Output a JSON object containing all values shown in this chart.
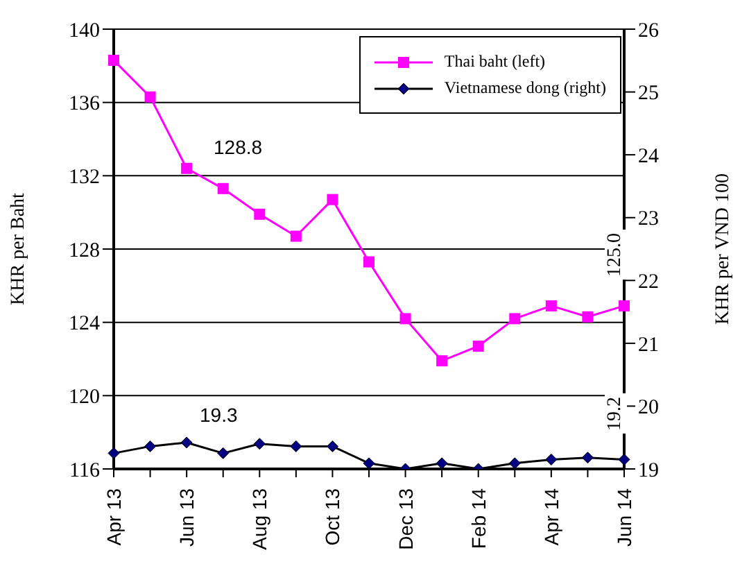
{
  "chart_data": {
    "type": "line",
    "categories": [
      "Apr 13",
      null,
      "Jun 13",
      null,
      "Aug 13",
      null,
      "Oct 13",
      null,
      "Dec 13",
      null,
      "Feb 14",
      null,
      "Apr 14",
      null,
      "Jun 14"
    ],
    "series": [
      {
        "name": "Thai baht (left)",
        "color": "#ff00ff",
        "marker": "square",
        "values": [
          138.3,
          136.3,
          132.4,
          131.3,
          129.9,
          128.7,
          130.7,
          127.3,
          124.2,
          121.9,
          122.7,
          124.2,
          124.9,
          124.3,
          124.9
        ]
      },
      {
        "name": "Vietnamese dong (right)",
        "color": "#000000",
        "marker": "diamond",
        "axis": "y2",
        "values": [
          19.25,
          19.36,
          19.42,
          19.25,
          19.4,
          19.36,
          19.36,
          19.09,
          19.0,
          19.09,
          19.0,
          19.09,
          19.15,
          19.18,
          19.15
        ]
      }
    ],
    "ylabel": "KHR per Baht",
    "y2label": "KHR per VND 100",
    "ylim": [
      116,
      140
    ],
    "yticks": [
      116,
      120,
      124,
      128,
      132,
      136,
      140
    ],
    "y2lim": [
      19,
      26
    ],
    "y2ticks": [
      19,
      20,
      21,
      22,
      23,
      24,
      25,
      26
    ],
    "grid": "y",
    "legend": "top right",
    "annotations": [
      "128.8",
      "19.3",
      "125.0",
      "19.2"
    ]
  }
}
